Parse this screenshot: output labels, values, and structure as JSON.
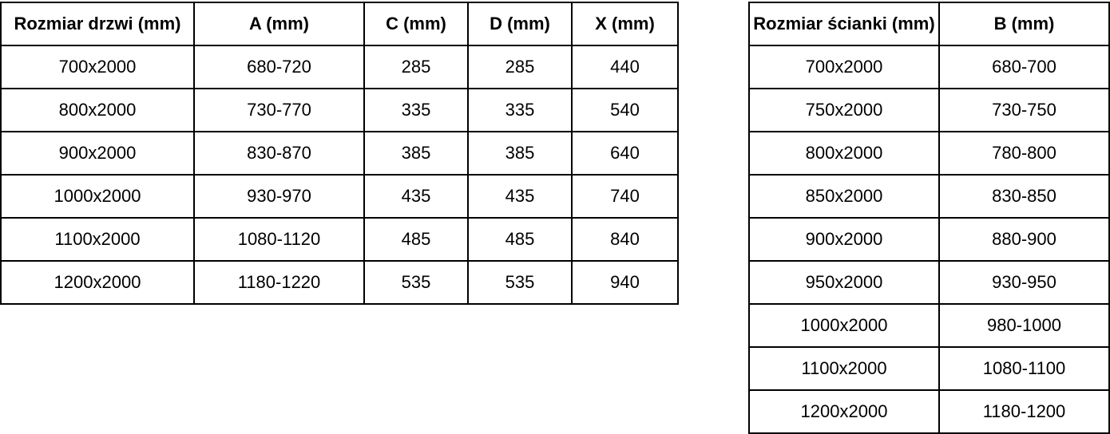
{
  "colors": {
    "border": "#000000",
    "text": "#000000",
    "background": "#ffffff"
  },
  "tables": {
    "door": {
      "title": "door-dimensions-table",
      "headers": [
        "Rozmiar drzwi (mm)",
        "A (mm)",
        "C (mm)",
        "D (mm)",
        "X (mm)"
      ],
      "rows": [
        [
          "700x2000",
          "680-720",
          "285",
          "285",
          "440"
        ],
        [
          "800x2000",
          "730-770",
          "335",
          "335",
          "540"
        ],
        [
          "900x2000",
          "830-870",
          "385",
          "385",
          "640"
        ],
        [
          "1000x2000",
          "930-970",
          "435",
          "435",
          "740"
        ],
        [
          "1100x2000",
          "1080-1120",
          "485",
          "485",
          "840"
        ],
        [
          "1200x2000",
          "1180-1220",
          "535",
          "535",
          "940"
        ]
      ]
    },
    "wall": {
      "title": "wall-panel-dimensions-table",
      "headers": [
        "Rozmiar ścianki (mm)",
        "B (mm)"
      ],
      "rows": [
        [
          "700x2000",
          "680-700"
        ],
        [
          "750x2000",
          "730-750"
        ],
        [
          "800x2000",
          "780-800"
        ],
        [
          "850x2000",
          "830-850"
        ],
        [
          "900x2000",
          "880-900"
        ],
        [
          "950x2000",
          "930-950"
        ],
        [
          "1000x2000",
          "980-1000"
        ],
        [
          "1100x2000",
          "1080-1100"
        ],
        [
          "1200x2000",
          "1180-1200"
        ]
      ]
    }
  }
}
